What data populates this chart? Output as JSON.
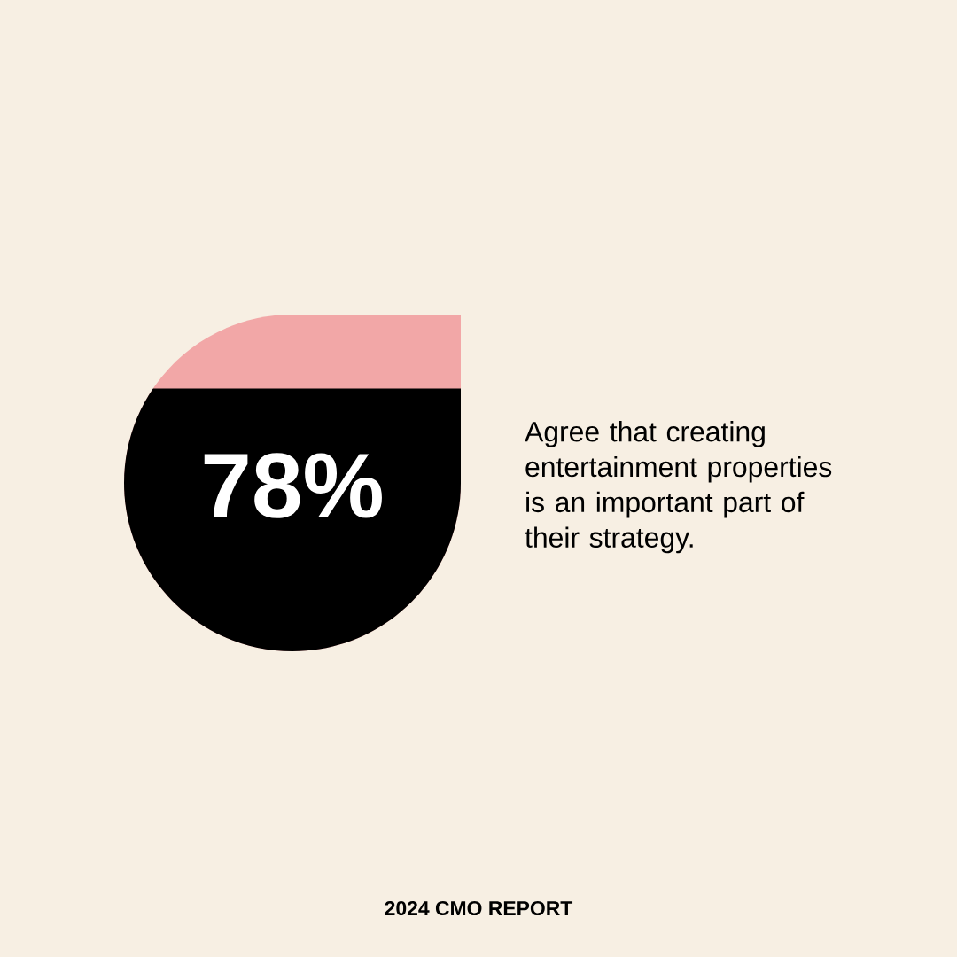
{
  "chart_data": {
    "type": "other",
    "values": [
      78
    ],
    "value_labels": [
      "78%"
    ],
    "color": "#000000",
    "annotations": [
      "Agree that creating entertainment properties is an important part of their strategy.",
      "2024 CMO REPORT"
    ]
  }
}
